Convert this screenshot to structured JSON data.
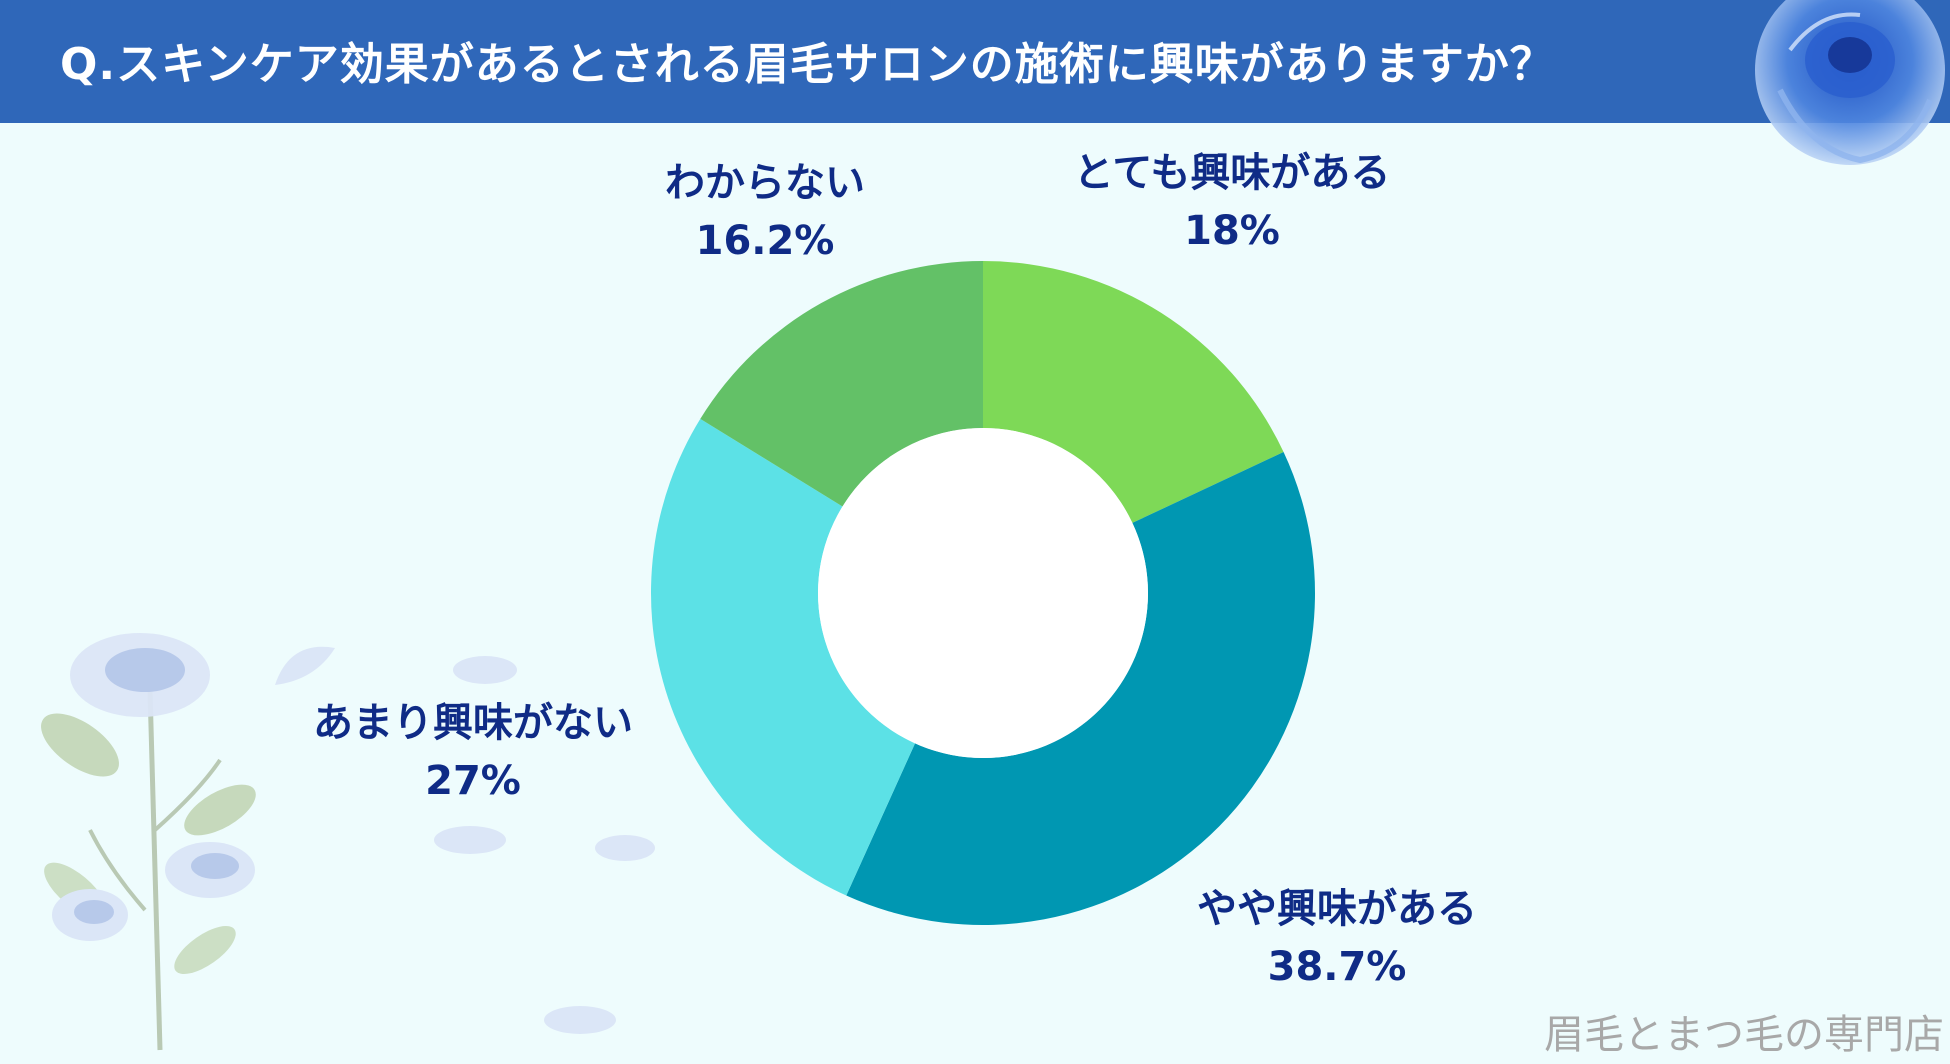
{
  "header": {
    "title": "Q.スキンケア効果があるとされる眉毛サロンの施術に興味がありますか？",
    "color": "#2f67b9"
  },
  "chart_data": {
    "type": "pie",
    "title": "Q.スキンケア効果があるとされる眉毛サロンの施術に興味がありますか？",
    "donut": true,
    "slices": [
      {
        "label": "とても興味がある",
        "value": 18,
        "display": "18%",
        "color": "#7ed957"
      },
      {
        "label": "やや興味がある",
        "value": 38.7,
        "display": "38.7%",
        "color": "#0097b2"
      },
      {
        "label": "あまり興味がない",
        "value": 27,
        "display": "27%",
        "color": "#5ce1e6"
      },
      {
        "label": "わからない",
        "value": 16.2,
        "display": "16.2%",
        "color": "#63c167"
      }
    ],
    "legend": "none"
  },
  "watermark": "眉毛とまつ毛の専門店"
}
